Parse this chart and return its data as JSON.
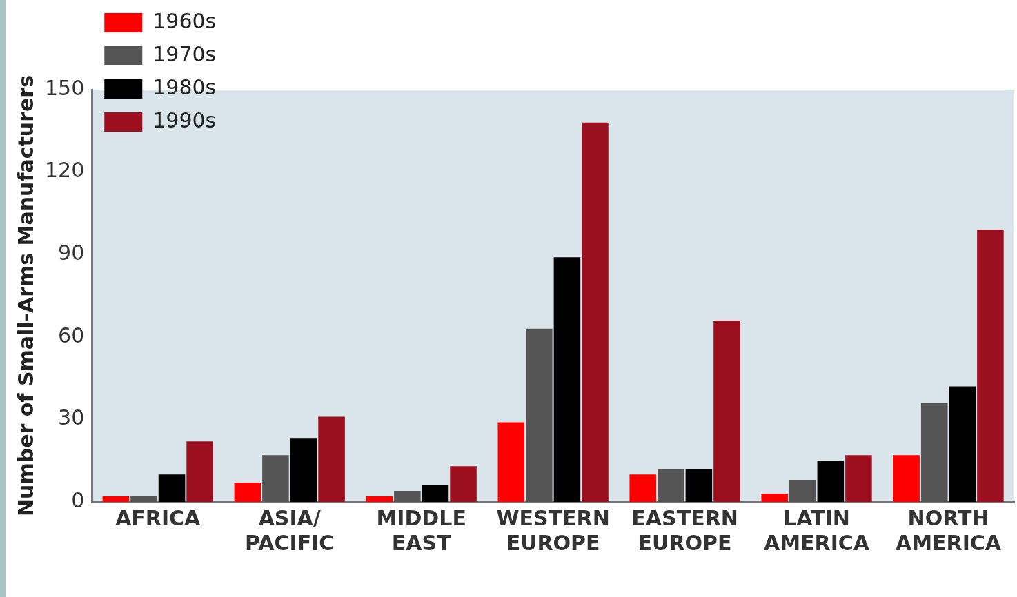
{
  "chart_data": {
    "type": "bar",
    "ylabel": "Number of Small-Arms Manufacturers",
    "categories": [
      "AFRICA",
      "ASIA/ PACIFIC",
      "MIDDLE EAST",
      "WESTERN EUROPE",
      "EASTERN EUROPE",
      "LATIN AMERICA",
      "NORTH AMERICA"
    ],
    "series": [
      {
        "name": "1960s",
        "color": "#ff0000",
        "values": [
          2,
          7,
          2,
          29,
          10,
          3,
          17
        ]
      },
      {
        "name": "1970s",
        "color": "#555555",
        "values": [
          2,
          17,
          4,
          63,
          12,
          8,
          36
        ]
      },
      {
        "name": "1980s",
        "color": "#000000",
        "values": [
          10,
          23,
          6,
          89,
          12,
          15,
          42
        ]
      },
      {
        "name": "1990s",
        "color": "#9b0f1f",
        "values": [
          22,
          31,
          13,
          138,
          66,
          17,
          99
        ]
      }
    ],
    "ylim": [
      0,
      150
    ],
    "yticks": [
      0,
      30,
      60,
      90,
      120,
      150
    ],
    "grid": false,
    "legend": "top left"
  }
}
